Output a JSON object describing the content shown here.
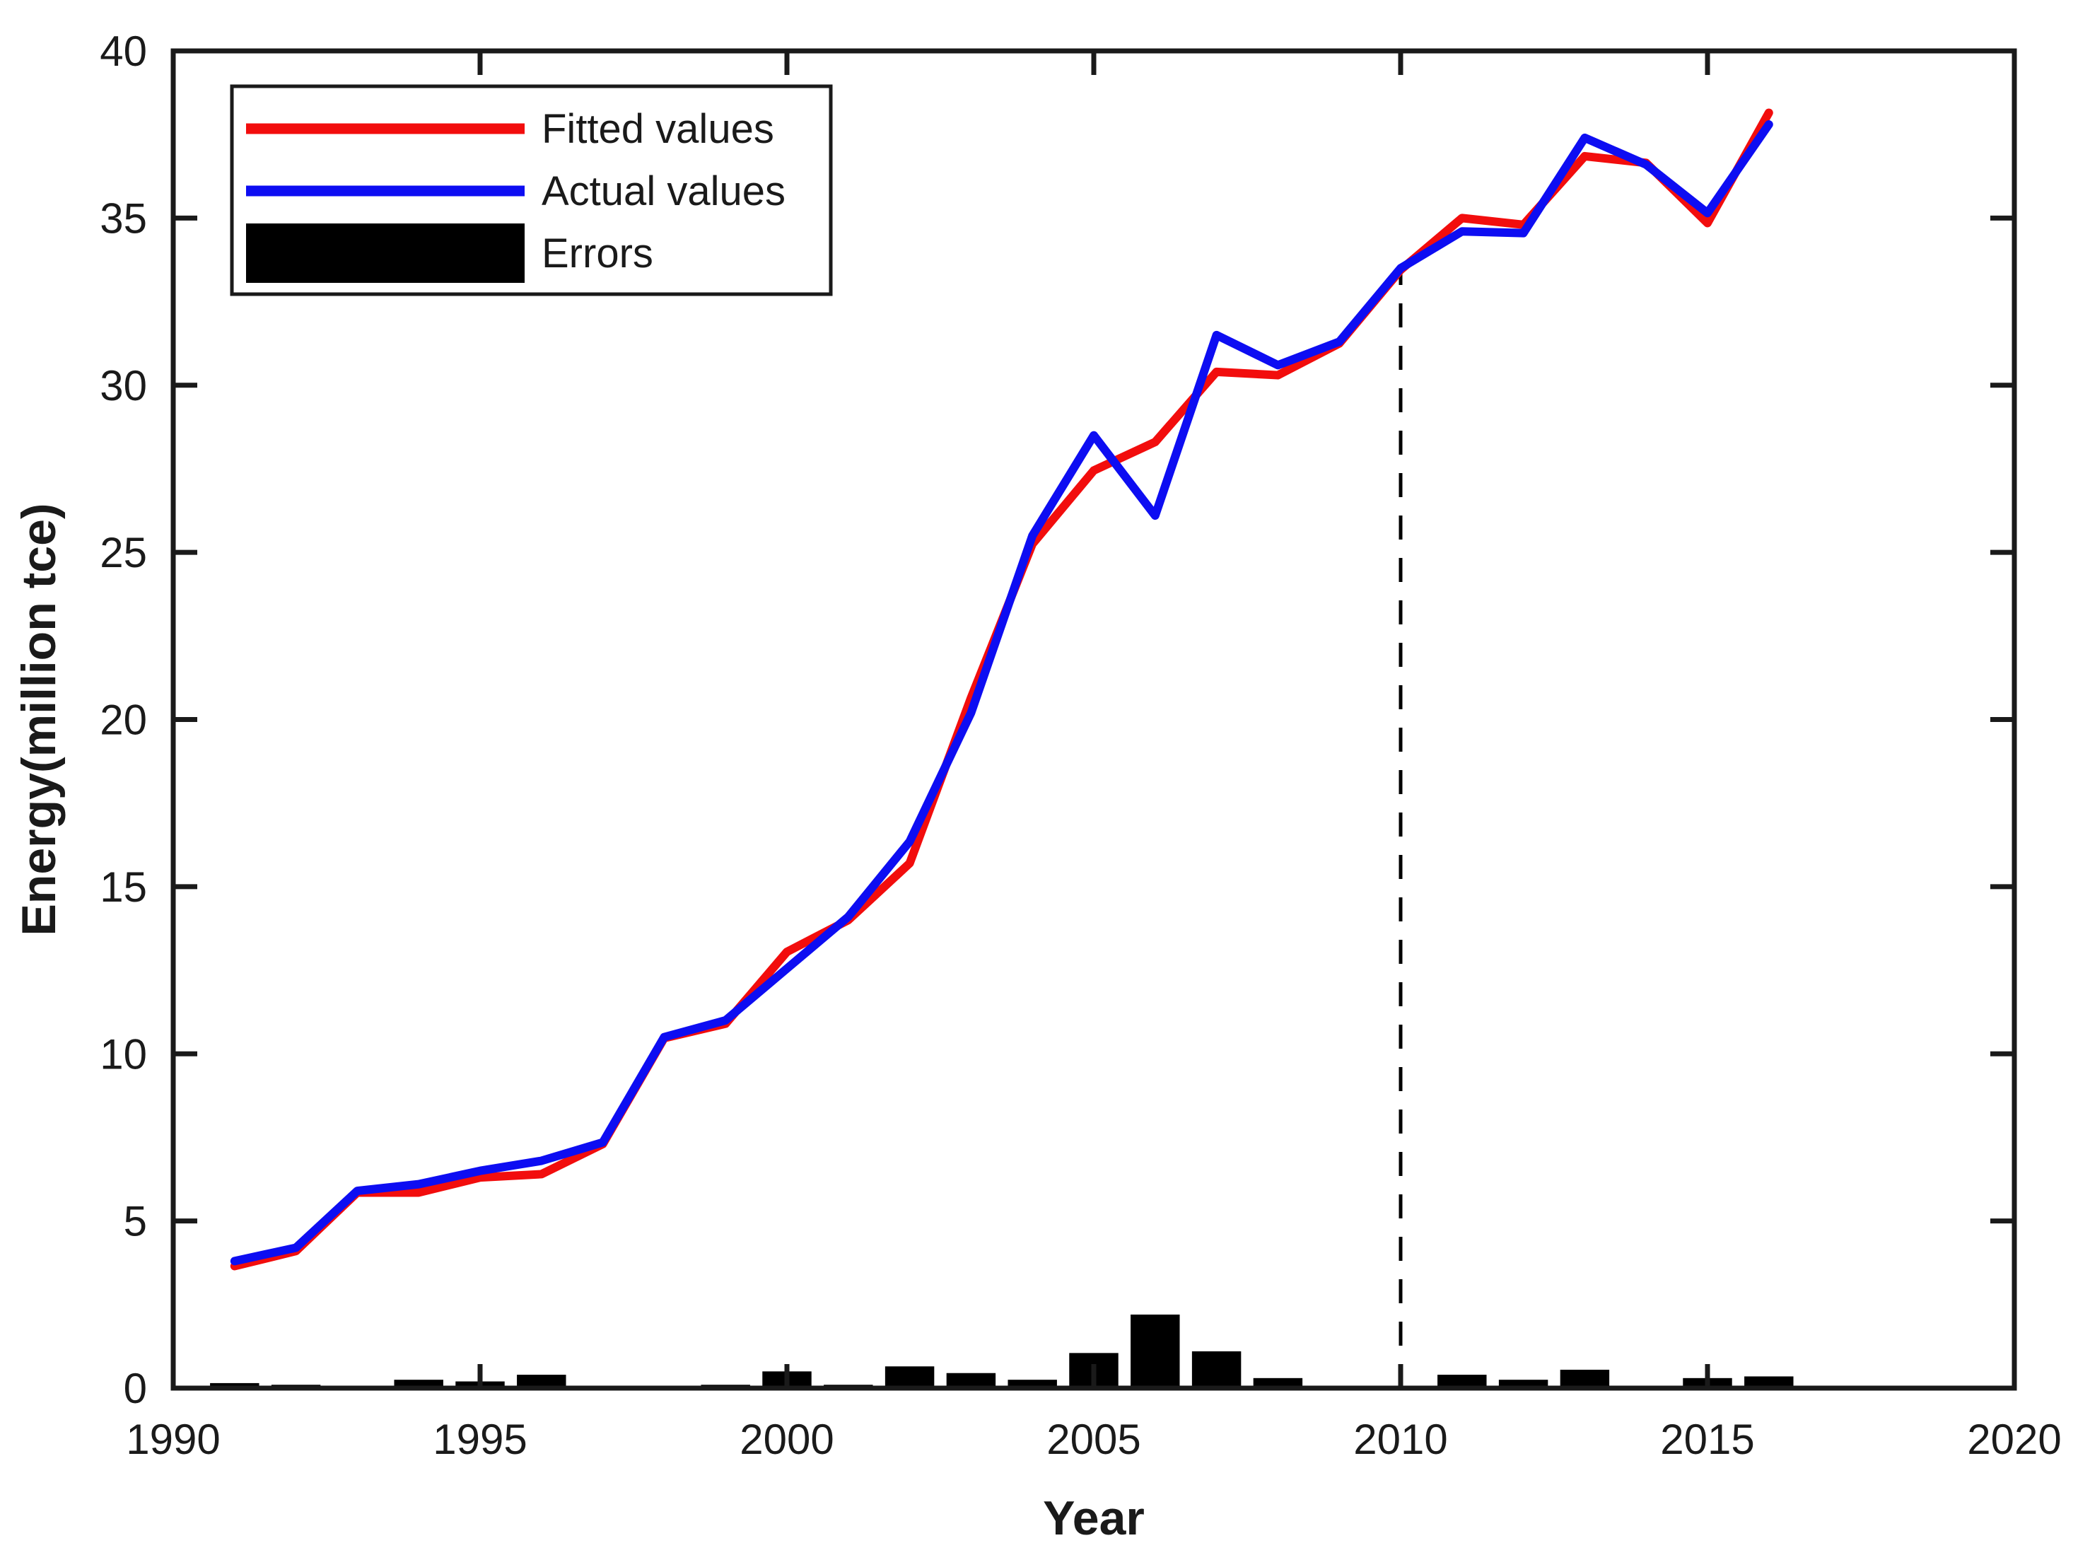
{
  "figure": {
    "background": "#ffffff",
    "axis_color": "#1a1a1a",
    "xlabel": "Year",
    "ylabel": "Energy(million tce)"
  },
  "legend": {
    "position": "upper-left",
    "items": [
      {
        "label": "Fitted values",
        "swatch": "line",
        "color": "#f20d0d"
      },
      {
        "label": "Actual values",
        "swatch": "line",
        "color": "#0d0df2"
      },
      {
        "label": "Errors",
        "swatch": "box",
        "color": "#000000"
      }
    ]
  },
  "chart_data": {
    "type": "line",
    "title": "",
    "xlabel": "Year",
    "ylabel": "Energy(million tce)",
    "xlim": [
      1990,
      2020
    ],
    "ylim": [
      0,
      40
    ],
    "x_ticks": [
      1990,
      1995,
      2000,
      2005,
      2010,
      2015,
      2020
    ],
    "y_ticks": [
      0,
      5,
      10,
      15,
      20,
      25,
      30,
      35,
      40
    ],
    "grid": false,
    "legend_position": "upper-left",
    "x": [
      1991,
      1992,
      1993,
      1994,
      1995,
      1996,
      1997,
      1998,
      1999,
      2000,
      2001,
      2002,
      2003,
      2004,
      2005,
      2006,
      2007,
      2008,
      2009,
      2010,
      2011,
      2012,
      2013,
      2014,
      2015,
      2016
    ],
    "series": [
      {
        "name": "Fitted values",
        "type": "line",
        "color": "#f20d0d",
        "values": [
          3.65,
          4.1,
          5.85,
          5.85,
          6.3,
          6.4,
          7.3,
          10.47,
          10.9,
          13.05,
          14.0,
          15.7,
          20.65,
          25.25,
          27.45,
          28.3,
          30.4,
          30.3,
          31.25,
          33.45,
          35.0,
          34.8,
          36.85,
          36.65,
          34.85,
          38.15
        ]
      },
      {
        "name": "Actual values",
        "type": "line",
        "color": "#0d0df2",
        "values": [
          3.8,
          4.2,
          5.9,
          6.1,
          6.5,
          6.8,
          7.35,
          10.5,
          11.0,
          12.55,
          14.1,
          16.35,
          20.2,
          25.5,
          28.5,
          26.1,
          31.5,
          30.6,
          31.3,
          33.5,
          34.6,
          34.55,
          37.4,
          36.6,
          35.15,
          37.8
        ]
      },
      {
        "name": "Errors",
        "type": "bar",
        "color": "#000000",
        "bar_width_years": 0.8,
        "values": [
          0.15,
          0.1,
          0.05,
          0.25,
          0.2,
          0.4,
          0.05,
          0.03,
          0.1,
          0.5,
          0.1,
          0.65,
          0.45,
          0.25,
          1.05,
          2.2,
          1.1,
          0.3,
          0.05,
          0.05,
          0.4,
          0.25,
          0.55,
          0.05,
          0.3,
          0.35
        ]
      }
    ],
    "annotations": [
      {
        "type": "vline",
        "style": "dashed",
        "color": "#000000",
        "x": 2010,
        "y_from": 0,
        "y_to": 33.5
      }
    ]
  }
}
